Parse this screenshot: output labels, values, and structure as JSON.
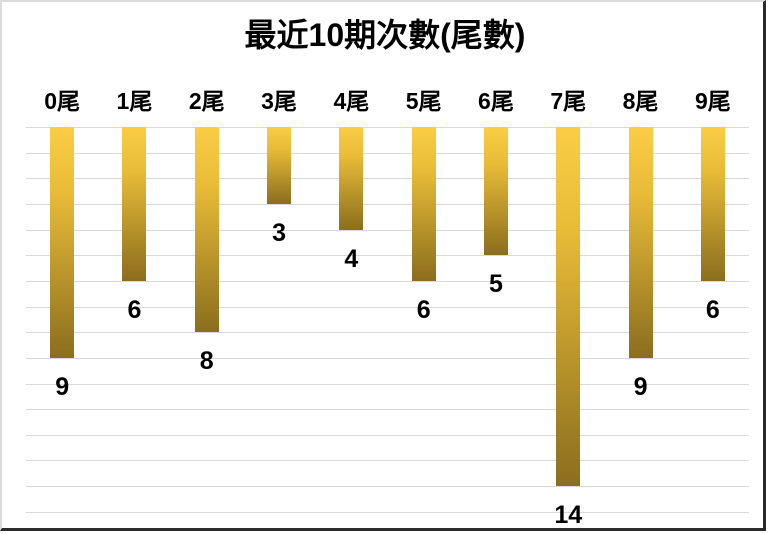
{
  "chart_data": {
    "type": "bar",
    "title": "最近10期次數(尾數)",
    "orientation": "bars-hang-from-top",
    "categories": [
      "0尾",
      "1尾",
      "2尾",
      "3尾",
      "4尾",
      "5尾",
      "6尾",
      "7尾",
      "8尾",
      "9尾"
    ],
    "values": [
      9,
      6,
      8,
      3,
      4,
      6,
      5,
      14,
      9,
      6
    ],
    "data_labels": [
      9,
      6,
      8,
      3,
      4,
      6,
      5,
      14,
      9,
      6
    ],
    "xlabel": "",
    "ylabel": "",
    "ylim": [
      0,
      15
    ],
    "grid": true,
    "legend": false,
    "colors": {
      "bar_gradient_top": "#FACD45",
      "bar_gradient_mid": "#E9BC38",
      "bar_gradient_bottom": "#8B6E1E",
      "gridline": "#D9D9D9",
      "title_text": "#000000",
      "label_text": "#000000",
      "background": "#FFFFFF",
      "border_light": "#DCDCDC",
      "border_dark": "#2B2B2B"
    }
  }
}
